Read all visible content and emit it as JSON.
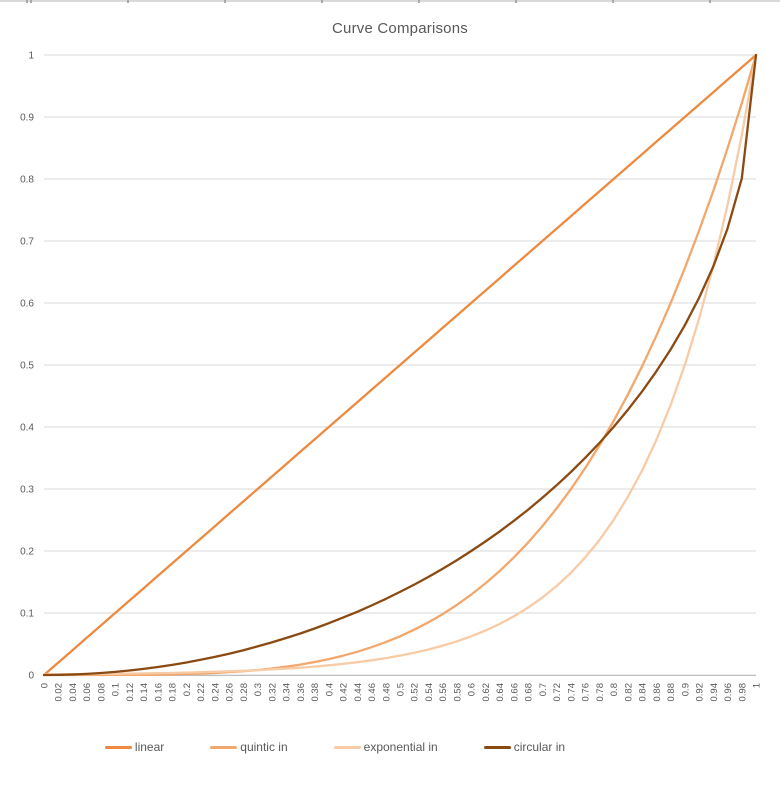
{
  "chart_data": {
    "type": "line",
    "title": "Curve Comparisons",
    "legend_position": "bottom",
    "grid": true,
    "xlim": [
      0,
      1
    ],
    "ylim": [
      0,
      1
    ],
    "gridline_color": "#d9d9d9",
    "axis_line_color": "#bfbfbf",
    "axis_text_color": "#595959",
    "title_color": "#595959",
    "y_ticks": [
      "1",
      "0.9",
      "0.8",
      "0.7",
      "0.6",
      "0.5",
      "0.4",
      "0.3",
      "0.2",
      "0.1",
      "0"
    ],
    "categories": [
      "0",
      "0.02",
      "0.04",
      "0.06",
      "0.08",
      "0.1",
      "0.12",
      "0.14",
      "0.16",
      "0.18",
      "0.2",
      "0.22",
      "0.24",
      "0.26",
      "0.28",
      "0.3",
      "0.32",
      "0.34",
      "0.36",
      "0.38",
      "0.4",
      "0.42",
      "0.44",
      "0.46",
      "0.48",
      "0.5",
      "0.52",
      "0.54",
      "0.56",
      "0.58",
      "0.6",
      "0.62",
      "0.64",
      "0.66",
      "0.68",
      "0.7",
      "0.72",
      "0.74",
      "0.76",
      "0.78",
      "0.8",
      "0.82",
      "0.84",
      "0.86",
      "0.88",
      "0.9",
      "0.92",
      "0.94",
      "0.96",
      "0.98",
      "1"
    ],
    "series": [
      {
        "name": "linear",
        "color": "#ED8A40",
        "values": [
          0,
          0.02,
          0.04,
          0.06,
          0.08,
          0.1,
          0.12,
          0.14,
          0.16,
          0.18,
          0.2,
          0.22,
          0.24,
          0.26,
          0.28,
          0.3,
          0.32,
          0.34,
          0.36,
          0.38,
          0.4,
          0.42,
          0.44,
          0.46,
          0.48,
          0.5,
          0.52,
          0.54,
          0.56,
          0.58,
          0.6,
          0.62,
          0.64,
          0.66,
          0.68,
          0.7,
          0.72,
          0.74,
          0.76,
          0.78,
          0.8,
          0.82,
          0.84,
          0.86,
          0.88,
          0.9,
          0.92,
          0.94,
          0.96,
          0.98,
          1
        ]
      },
      {
        "name": "quintic in",
        "color": "#F2A76C",
        "values": [
          0,
          0,
          0,
          0,
          0,
          0.0001,
          0.0002,
          0.0004,
          0.0007,
          0.001,
          0.0016,
          0.0023,
          0.0033,
          0.0046,
          0.0061,
          0.0081,
          0.0105,
          0.0134,
          0.0168,
          0.0209,
          0.0256,
          0.0311,
          0.0375,
          0.0448,
          0.0531,
          0.0625,
          0.0731,
          0.085,
          0.0983,
          0.1132,
          0.1296,
          0.1478,
          0.1678,
          0.1897,
          0.2138,
          0.2401,
          0.2687,
          0.2999,
          0.3336,
          0.3702,
          0.4096,
          0.4521,
          0.4979,
          0.547,
          0.5997,
          0.6561,
          0.7164,
          0.7807,
          0.8493,
          0.9224,
          1
        ]
      },
      {
        "name": "exponential in",
        "color": "#F7CBA6",
        "values": [
          0.001,
          0.0011,
          0.0013,
          0.0015,
          0.0017,
          0.002,
          0.0022,
          0.0026,
          0.003,
          0.0034,
          0.0039,
          0.0045,
          0.0052,
          0.0059,
          0.0068,
          0.0078,
          0.009,
          0.0103,
          0.0118,
          0.0136,
          0.0156,
          0.0179,
          0.0206,
          0.0237,
          0.0272,
          0.0313,
          0.0359,
          0.0412,
          0.0474,
          0.0544,
          0.0625,
          0.0718,
          0.0825,
          0.0947,
          0.1088,
          0.125,
          0.1436,
          0.1649,
          0.1895,
          0.2176,
          0.25,
          0.2872,
          0.3299,
          0.3789,
          0.4353,
          0.5,
          0.5743,
          0.6598,
          0.7579,
          0.8706,
          1
        ]
      },
      {
        "name": "circular in",
        "color": "#8A4A12",
        "values": [
          0,
          0.0002,
          0.0008,
          0.0018,
          0.0032,
          0.005,
          0.0072,
          0.0098,
          0.0129,
          0.0163,
          0.0202,
          0.0245,
          0.0292,
          0.0344,
          0.04,
          0.0461,
          0.0526,
          0.0596,
          0.067,
          0.075,
          0.0835,
          0.0925,
          0.102,
          0.1121,
          0.1227,
          0.134,
          0.1458,
          0.1583,
          0.1715,
          0.1854,
          0.2,
          0.2154,
          0.2316,
          0.2487,
          0.2668,
          0.2859,
          0.306,
          0.3274,
          0.3501,
          0.3742,
          0.4,
          0.4276,
          0.4574,
          0.4897,
          0.525,
          0.5641,
          0.6081,
          0.6588,
          0.72,
          0.801,
          1
        ]
      }
    ]
  }
}
